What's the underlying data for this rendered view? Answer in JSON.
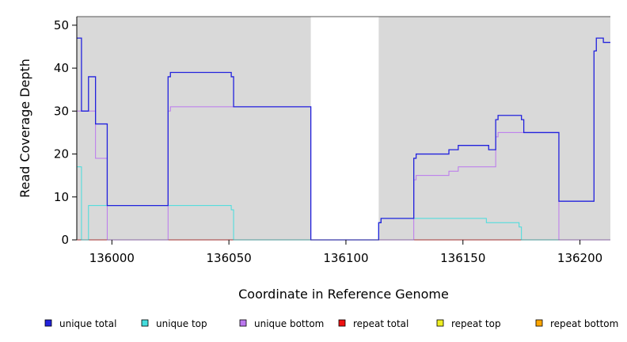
{
  "chart_data": {
    "type": "line",
    "step": true,
    "xlabel": "Coordinate in Reference Genome",
    "ylabel": "Read Coverage Depth",
    "xlim": [
      135985,
      136213
    ],
    "ylim": [
      0,
      52
    ],
    "xticks": [
      136000,
      136050,
      136100,
      136150,
      136200
    ],
    "yticks": [
      0,
      10,
      20,
      30,
      40,
      50
    ],
    "xtick_labels": [
      "136000",
      "136050",
      "136100",
      "136150",
      "136200"
    ],
    "ytick_labels": [
      "0",
      "10",
      "20",
      "30",
      "40",
      "50"
    ],
    "shaded_regions": [
      {
        "from": 135985,
        "to": 136085,
        "color": "#d9d9d9"
      },
      {
        "from": 136114,
        "to": 136213,
        "color": "#d9d9d9"
      }
    ],
    "legend_position": "bottom",
    "series": [
      {
        "name": "unique total",
        "color": "#2222dd",
        "points": [
          [
            135985,
            47
          ],
          [
            135987,
            47
          ],
          [
            135987,
            30
          ],
          [
            135990,
            30
          ],
          [
            135990,
            38
          ],
          [
            135993,
            38
          ],
          [
            135993,
            27
          ],
          [
            135998,
            27
          ],
          [
            135998,
            8
          ],
          [
            136024,
            8
          ],
          [
            136024,
            38
          ],
          [
            136025,
            38
          ],
          [
            136025,
            39
          ],
          [
            136051,
            39
          ],
          [
            136051,
            38
          ],
          [
            136052,
            38
          ],
          [
            136052,
            31
          ],
          [
            136085,
            31
          ],
          [
            136085,
            0
          ],
          [
            136114,
            0
          ],
          [
            136114,
            4
          ],
          [
            136115,
            4
          ],
          [
            136115,
            5
          ],
          [
            136129,
            5
          ],
          [
            136129,
            19
          ],
          [
            136130,
            19
          ],
          [
            136130,
            20
          ],
          [
            136144,
            20
          ],
          [
            136144,
            21
          ],
          [
            136148,
            21
          ],
          [
            136148,
            22
          ],
          [
            136161,
            22
          ],
          [
            136161,
            21
          ],
          [
            136164,
            21
          ],
          [
            136164,
            28
          ],
          [
            136165,
            28
          ],
          [
            136165,
            29
          ],
          [
            136175,
            29
          ],
          [
            136175,
            28
          ],
          [
            136176,
            28
          ],
          [
            136176,
            25
          ],
          [
            136191,
            25
          ],
          [
            136191,
            9
          ],
          [
            136206,
            9
          ],
          [
            136206,
            44
          ],
          [
            136207,
            44
          ],
          [
            136207,
            47
          ],
          [
            136210,
            47
          ],
          [
            136210,
            46
          ],
          [
            136213,
            46
          ]
        ]
      },
      {
        "name": "unique top",
        "color": "#44dddd",
        "points": [
          [
            135985,
            17
          ],
          [
            135987,
            17
          ],
          [
            135987,
            0
          ],
          [
            135990,
            0
          ],
          [
            135990,
            8
          ],
          [
            136051,
            8
          ],
          [
            136051,
            7
          ],
          [
            136052,
            7
          ],
          [
            136052,
            0
          ],
          [
            136114,
            0
          ],
          [
            136114,
            4
          ],
          [
            136115,
            4
          ],
          [
            136115,
            5
          ],
          [
            136160,
            5
          ],
          [
            136160,
            4
          ],
          [
            136174,
            4
          ],
          [
            136174,
            3
          ],
          [
            136175,
            3
          ],
          [
            136175,
            0
          ],
          [
            136213,
            0
          ]
        ]
      },
      {
        "name": "unique bottom",
        "color": "#bb77ee",
        "points": [
          [
            135985,
            30
          ],
          [
            135993,
            30
          ],
          [
            135993,
            19
          ],
          [
            135998,
            19
          ],
          [
            135998,
            0
          ],
          [
            136024,
            0
          ],
          [
            136024,
            30
          ],
          [
            136025,
            30
          ],
          [
            136025,
            31
          ],
          [
            136085,
            31
          ],
          [
            136085,
            0
          ],
          [
            136129,
            0
          ],
          [
            136129,
            14
          ],
          [
            136130,
            14
          ],
          [
            136130,
            15
          ],
          [
            136144,
            15
          ],
          [
            136144,
            16
          ],
          [
            136148,
            16
          ],
          [
            136148,
            17
          ],
          [
            136164,
            17
          ],
          [
            136164,
            24
          ],
          [
            136165,
            24
          ],
          [
            136165,
            25
          ],
          [
            136191,
            25
          ],
          [
            136191,
            0
          ],
          [
            136213,
            0
          ]
        ]
      },
      {
        "name": "repeat total",
        "color": "#ee1111",
        "points": [
          [
            135985,
            0
          ],
          [
            136213,
            0
          ]
        ]
      },
      {
        "name": "repeat top",
        "color": "#eeee22",
        "points": [
          [
            135985,
            0
          ],
          [
            136213,
            0
          ]
        ]
      },
      {
        "name": "repeat bottom",
        "color": "#ffa500",
        "points": [
          [
            135999,
            0
          ],
          [
            136085,
            0
          ],
          [
            136129,
            0
          ],
          [
            136191,
            0
          ]
        ]
      }
    ]
  }
}
